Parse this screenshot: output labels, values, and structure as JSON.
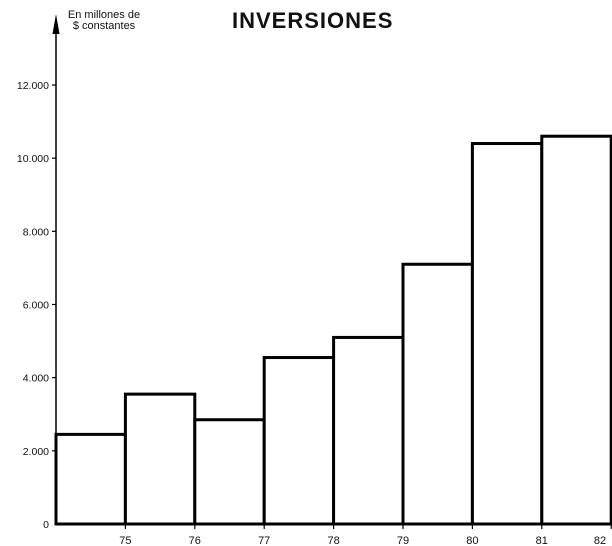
{
  "chart_data": {
    "type": "bar",
    "title": "INVERSIONES",
    "ylabel_lines": [
      "En millones de",
      "$ constantes"
    ],
    "xlabel": "",
    "ylim": [
      0,
      14000
    ],
    "yticks": [
      0,
      2000,
      4000,
      6000,
      8000,
      10000,
      12000
    ],
    "ytick_labels": [
      "0",
      "2.000",
      "4.000",
      "6.000",
      "8.000",
      "10.000",
      "12.000"
    ],
    "x_boundary_labels": [
      "75",
      "76",
      "77",
      "78",
      "79",
      "80",
      "81",
      "82"
    ],
    "grid": false,
    "legend": "none",
    "series": [
      {
        "values": [
          2450,
          3550,
          2850,
          4550,
          5100,
          7100,
          10400,
          10600
        ]
      }
    ],
    "colors": {
      "bar_fill": "#ffffff",
      "bar_edge": "#000000",
      "axis": "#000000"
    }
  }
}
